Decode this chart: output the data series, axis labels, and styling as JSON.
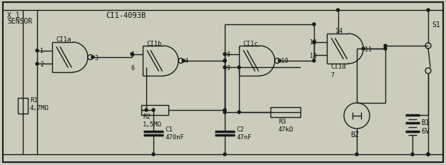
{
  "bg_color": "#ccccbc",
  "line_color": "#1a1a1a",
  "text_color": "#111111",
  "title_CI1": "CI1-4093B",
  "label_x1": "X 1\nSENSOR",
  "label_CIa": "CI1a",
  "label_CIb": "CI1b",
  "label_CIc": "CI1c",
  "label_CId": "CI1d",
  "label_R1": "R1\n4,7MΩ",
  "label_R2": "R2\n1,5MΩ",
  "label_R3": "R3\n47kΩ",
  "label_C1": "C1\n470nF",
  "label_C2": "C2\n47nF",
  "label_BZ": "BZ",
  "label_B1": "B1\n6V",
  "label_S1": "S1",
  "figsize": [
    6.25,
    2.32
  ],
  "dpi": 100
}
